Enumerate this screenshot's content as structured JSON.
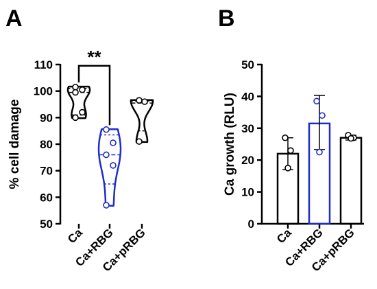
{
  "panels": {
    "a": {
      "letter": "A"
    },
    "b": {
      "letter": "B"
    }
  },
  "chart_data": [
    {
      "type": "violin",
      "panel": "A",
      "ylabel": "% cell damage",
      "xlabel": "",
      "ylim": [
        50,
        110
      ],
      "yticks": [
        50,
        60,
        70,
        80,
        90,
        100,
        110
      ],
      "categories": [
        "Ca",
        "Ca+RBG",
        "Ca+pRBG"
      ],
      "series": [
        {
          "category": "Ca",
          "color": "#000000",
          "points": [
            101.5,
            100.5,
            99.5,
            92,
            90
          ],
          "median": 99.5,
          "quartiles": [
            91,
            101
          ],
          "range": [
            89.8,
            101.7
          ]
        },
        {
          "category": "Ca+RBG",
          "color": "#1f2ccc",
          "points": [
            85.5,
            80.5,
            76,
            72,
            57
          ],
          "median": 76,
          "quartiles": [
            65,
            83.5
          ],
          "range": [
            56.8,
            85.6
          ]
        },
        {
          "category": "Ca+pRBG",
          "color": "#000000",
          "points": [
            96.5,
            96,
            81
          ],
          "median": 95.5,
          "quartiles": [
            85,
            96.3
          ],
          "range": [
            80.8,
            96.6
          ]
        }
      ],
      "annotation": {
        "text": "**",
        "between": [
          "Ca",
          "Ca+RBG"
        ]
      }
    },
    {
      "type": "bar",
      "panel": "B",
      "ylabel": "Ca growth (RLU)",
      "xlabel": "",
      "ylim": [
        0,
        50
      ],
      "yticks": [
        0,
        10,
        20,
        30,
        40,
        50
      ],
      "categories": [
        "Ca",
        "Ca+RBG",
        "Ca+pRBG"
      ],
      "values": [
        22,
        31.5,
        27
      ],
      "errors": [
        [
          17,
          27
        ],
        [
          23.3,
          40.3
        ],
        [
          26.3,
          27.8
        ]
      ],
      "points": [
        [
          27,
          23,
          17.5
        ],
        [
          38.5,
          34,
          22.5
        ],
        [
          27.8,
          27,
          26.8
        ]
      ],
      "colors": [
        "#000000",
        "#1f2ccc",
        "#000000"
      ]
    }
  ]
}
